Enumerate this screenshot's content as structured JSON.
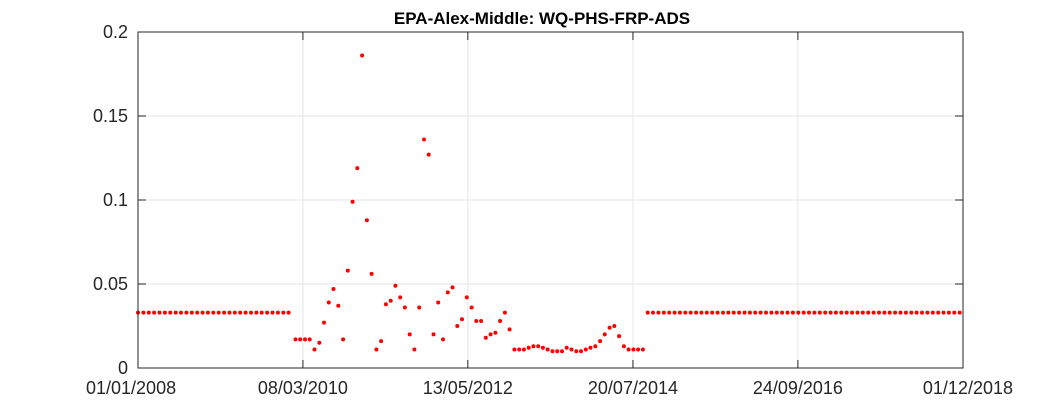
{
  "chart_data": {
    "type": "scatter",
    "title": "EPA-Alex-Middle: WQ-PHS-FRP-ADS",
    "xlabel": "",
    "ylabel": "",
    "x_axis_type": "date",
    "xlim": [
      "2008-01-01",
      "2018-12-01"
    ],
    "x_ticks": [
      "2008-01-01",
      "2010-03-08",
      "2012-05-13",
      "2014-07-20",
      "2016-09-24",
      "2018-12-01"
    ],
    "x_tick_labels": [
      "01/01/2008",
      "08/03/2010",
      "13/05/2012",
      "20/07/2014",
      "24/09/2016",
      "01/12/2018"
    ],
    "ylim": [
      0,
      0.2
    ],
    "y_ticks": [
      0,
      0.05,
      0.1,
      0.15,
      0.2
    ],
    "y_tick_labels": [
      "0",
      "0.05",
      "0.1",
      "0.15",
      "0.2"
    ],
    "grid": true,
    "marker_color": "#ff0000",
    "series": [
      {
        "points": [
          [
            "2008-01-01",
            0.033
          ],
          [
            "2008-01-27",
            0.033
          ],
          [
            "2008-02-22",
            0.033
          ],
          [
            "2008-03-19",
            0.033
          ],
          [
            "2008-04-14",
            0.033
          ],
          [
            "2008-05-10",
            0.033
          ],
          [
            "2008-06-05",
            0.033
          ],
          [
            "2008-07-01",
            0.033
          ],
          [
            "2008-07-27",
            0.033
          ],
          [
            "2008-08-22",
            0.033
          ],
          [
            "2008-09-17",
            0.033
          ],
          [
            "2008-10-13",
            0.033
          ],
          [
            "2008-11-08",
            0.033
          ],
          [
            "2008-12-04",
            0.033
          ],
          [
            "2008-12-30",
            0.033
          ],
          [
            "2009-01-25",
            0.033
          ],
          [
            "2009-02-20",
            0.033
          ],
          [
            "2009-03-18",
            0.033
          ],
          [
            "2009-04-13",
            0.033
          ],
          [
            "2009-05-09",
            0.033
          ],
          [
            "2009-06-04",
            0.033
          ],
          [
            "2009-06-30",
            0.033
          ],
          [
            "2009-07-26",
            0.033
          ],
          [
            "2009-08-21",
            0.033
          ],
          [
            "2009-09-16",
            0.033
          ],
          [
            "2009-10-12",
            0.033
          ],
          [
            "2009-11-07",
            0.033
          ],
          [
            "2009-12-03",
            0.033
          ],
          [
            "2009-12-29",
            0.033
          ],
          [
            "2010-01-31",
            0.017
          ],
          [
            "2010-02-23",
            0.017
          ],
          [
            "2010-03-18",
            0.017
          ],
          [
            "2010-04-10",
            0.017
          ],
          [
            "2010-05-03",
            0.011
          ],
          [
            "2010-05-26",
            0.015
          ],
          [
            "2010-06-18",
            0.027
          ],
          [
            "2010-07-11",
            0.039
          ],
          [
            "2010-08-03",
            0.047
          ],
          [
            "2010-08-26",
            0.037
          ],
          [
            "2010-09-18",
            0.017
          ],
          [
            "2010-10-11",
            0.058
          ],
          [
            "2010-11-03",
            0.099
          ],
          [
            "2010-11-26",
            0.119
          ],
          [
            "2010-12-19",
            0.186
          ],
          [
            "2011-01-11",
            0.088
          ],
          [
            "2011-02-03",
            0.056
          ],
          [
            "2011-02-26",
            0.011
          ],
          [
            "2011-03-21",
            0.016
          ],
          [
            "2011-04-13",
            0.038
          ],
          [
            "2011-05-06",
            0.04
          ],
          [
            "2011-05-29",
            0.049
          ],
          [
            "2011-06-21",
            0.042
          ],
          [
            "2011-07-14",
            0.036
          ],
          [
            "2011-08-06",
            0.02
          ],
          [
            "2011-08-29",
            0.011
          ],
          [
            "2011-09-21",
            0.036
          ],
          [
            "2011-10-14",
            0.136
          ],
          [
            "2011-11-06",
            0.127
          ],
          [
            "2011-11-29",
            0.02
          ],
          [
            "2011-12-22",
            0.039
          ],
          [
            "2012-01-14",
            0.017
          ],
          [
            "2012-02-06",
            0.045
          ],
          [
            "2012-02-29",
            0.048
          ],
          [
            "2012-03-23",
            0.025
          ],
          [
            "2012-04-15",
            0.029
          ],
          [
            "2012-05-08",
            0.042
          ],
          [
            "2012-05-31",
            0.036
          ],
          [
            "2012-06-23",
            0.028
          ],
          [
            "2012-07-16",
            0.028
          ],
          [
            "2012-08-08",
            0.018
          ],
          [
            "2012-08-31",
            0.02
          ],
          [
            "2012-09-23",
            0.021
          ],
          [
            "2012-10-16",
            0.028
          ],
          [
            "2012-11-08",
            0.033
          ],
          [
            "2012-12-01",
            0.023
          ],
          [
            "2012-12-24",
            0.011
          ],
          [
            "2013-01-16",
            0.011
          ],
          [
            "2013-02-08",
            0.011
          ],
          [
            "2013-03-03",
            0.012
          ],
          [
            "2013-03-26",
            0.013
          ],
          [
            "2013-04-18",
            0.013
          ],
          [
            "2013-05-11",
            0.012
          ],
          [
            "2013-06-03",
            0.011
          ],
          [
            "2013-06-26",
            0.01
          ],
          [
            "2013-07-19",
            0.01
          ],
          [
            "2013-08-11",
            0.01
          ],
          [
            "2013-09-03",
            0.012
          ],
          [
            "2013-09-26",
            0.011
          ],
          [
            "2013-10-19",
            0.01
          ],
          [
            "2013-11-11",
            0.01
          ],
          [
            "2013-12-04",
            0.011
          ],
          [
            "2013-12-27",
            0.012
          ],
          [
            "2014-01-19",
            0.013
          ],
          [
            "2014-02-11",
            0.016
          ],
          [
            "2014-03-06",
            0.02
          ],
          [
            "2014-03-29",
            0.024
          ],
          [
            "2014-04-21",
            0.025
          ],
          [
            "2014-05-14",
            0.019
          ],
          [
            "2014-06-06",
            0.013
          ],
          [
            "2014-06-29",
            0.011
          ],
          [
            "2014-07-22",
            0.011
          ],
          [
            "2014-08-14",
            0.011
          ],
          [
            "2014-09-06",
            0.011
          ],
          [
            "2014-09-29",
            0.033
          ],
          [
            "2014-10-25",
            0.033
          ],
          [
            "2014-11-20",
            0.033
          ],
          [
            "2014-12-16",
            0.033
          ],
          [
            "2015-01-11",
            0.033
          ],
          [
            "2015-02-06",
            0.033
          ],
          [
            "2015-03-04",
            0.033
          ],
          [
            "2015-03-30",
            0.033
          ],
          [
            "2015-04-25",
            0.033
          ],
          [
            "2015-05-21",
            0.033
          ],
          [
            "2015-06-16",
            0.033
          ],
          [
            "2015-07-12",
            0.033
          ],
          [
            "2015-08-07",
            0.033
          ],
          [
            "2015-09-02",
            0.033
          ],
          [
            "2015-09-28",
            0.033
          ],
          [
            "2015-10-24",
            0.033
          ],
          [
            "2015-11-19",
            0.033
          ],
          [
            "2015-12-15",
            0.033
          ],
          [
            "2016-01-10",
            0.033
          ],
          [
            "2016-02-05",
            0.033
          ],
          [
            "2016-03-02",
            0.033
          ],
          [
            "2016-03-28",
            0.033
          ],
          [
            "2016-04-23",
            0.033
          ],
          [
            "2016-05-19",
            0.033
          ],
          [
            "2016-06-14",
            0.033
          ],
          [
            "2016-07-10",
            0.033
          ],
          [
            "2016-08-05",
            0.033
          ],
          [
            "2016-08-31",
            0.033
          ],
          [
            "2016-09-26",
            0.033
          ],
          [
            "2016-10-22",
            0.033
          ],
          [
            "2016-11-17",
            0.033
          ],
          [
            "2016-12-13",
            0.033
          ],
          [
            "2017-01-08",
            0.033
          ],
          [
            "2017-02-03",
            0.033
          ],
          [
            "2017-03-01",
            0.033
          ],
          [
            "2017-03-27",
            0.033
          ],
          [
            "2017-04-22",
            0.033
          ],
          [
            "2017-05-18",
            0.033
          ],
          [
            "2017-06-13",
            0.033
          ],
          [
            "2017-07-09",
            0.033
          ],
          [
            "2017-08-04",
            0.033
          ],
          [
            "2017-08-30",
            0.033
          ],
          [
            "2017-09-25",
            0.033
          ],
          [
            "2017-10-21",
            0.033
          ],
          [
            "2017-11-16",
            0.033
          ],
          [
            "2017-12-12",
            0.033
          ],
          [
            "2018-01-07",
            0.033
          ],
          [
            "2018-02-02",
            0.033
          ],
          [
            "2018-02-28",
            0.033
          ],
          [
            "2018-03-26",
            0.033
          ],
          [
            "2018-04-21",
            0.033
          ],
          [
            "2018-05-17",
            0.033
          ],
          [
            "2018-06-12",
            0.033
          ],
          [
            "2018-07-08",
            0.033
          ],
          [
            "2018-08-03",
            0.033
          ],
          [
            "2018-08-29",
            0.033
          ],
          [
            "2018-09-24",
            0.033
          ],
          [
            "2018-10-20",
            0.033
          ],
          [
            "2018-11-15",
            0.033
          ]
        ]
      }
    ]
  }
}
